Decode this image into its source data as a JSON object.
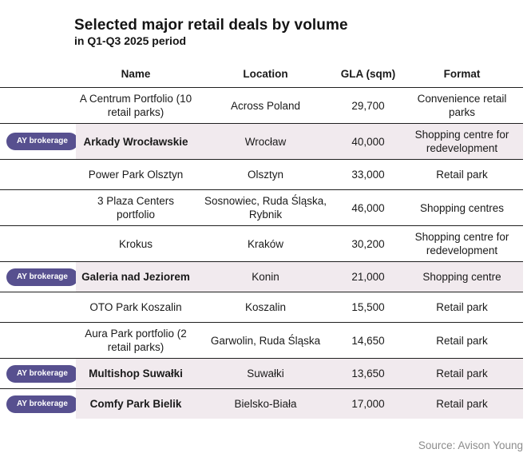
{
  "chart_data": {
    "type": "table",
    "title": "Selected major retail deals by volume",
    "subtitle": "in Q1-Q3 2025 period",
    "columns": [
      "Name",
      "Location",
      "GLA (sqm)",
      "Format"
    ],
    "rows": [
      {
        "name": "A Centrum Portfolio (10 retail parks)",
        "location": "Across Poland",
        "gla_sqm": 29700,
        "gla_label": "29,700",
        "format": "Convenience retail parks",
        "ay_brokerage": false
      },
      {
        "name": "Arkady Wrocławskie",
        "location": "Wrocław",
        "gla_sqm": 40000,
        "gla_label": "40,000",
        "format": "Shopping centre for redevelopment",
        "ay_brokerage": true
      },
      {
        "name": "Power Park Olsztyn",
        "location": "Olsztyn",
        "gla_sqm": 33000,
        "gla_label": "33,000",
        "format": "Retail park",
        "ay_brokerage": false
      },
      {
        "name": "3 Plaza Centers portfolio",
        "location": "Sosnowiec, Ruda Śląska, Rybnik",
        "gla_sqm": 46000,
        "gla_label": "46,000",
        "format": "Shopping centres",
        "ay_brokerage": false
      },
      {
        "name": "Krokus",
        "location": "Kraków",
        "gla_sqm": 30200,
        "gla_label": "30,200",
        "format": "Shopping centre for redevelopment",
        "ay_brokerage": false
      },
      {
        "name": "Galeria nad Jeziorem",
        "location": "Konin",
        "gla_sqm": 21000,
        "gla_label": "21,000",
        "format": "Shopping centre",
        "ay_brokerage": true
      },
      {
        "name": "OTO Park Koszalin",
        "location": "Koszalin",
        "gla_sqm": 15500,
        "gla_label": "15,500",
        "format": "Retail park",
        "ay_brokerage": false
      },
      {
        "name": "Aura Park portfolio (2 retail parks)",
        "location": "Garwolin, Ruda Śląska",
        "gla_sqm": 14650,
        "gla_label": "14,650",
        "format": "Retail park",
        "ay_brokerage": false
      },
      {
        "name": "Multishop Suwałki",
        "location": "Suwałki",
        "gla_sqm": 13650,
        "gla_label": "13,650",
        "format": "Retail park",
        "ay_brokerage": true
      },
      {
        "name": "Comfy Park Bielik",
        "location": "Bielsko-Biała",
        "gla_sqm": 17000,
        "gla_label": "17,000",
        "format": "Retail park",
        "ay_brokerage": true
      }
    ],
    "source": "Source: Avison Young",
    "legend_position": "none",
    "grid": "horizontal-row-separators"
  },
  "badge_label": "AY brokerage",
  "colors": {
    "badge_purple": "#57508f",
    "row_highlight": "#f1eaee",
    "row_border": "#1f1f1f",
    "text": "#1a1a1a",
    "source_gray": "#8c8c8c"
  }
}
